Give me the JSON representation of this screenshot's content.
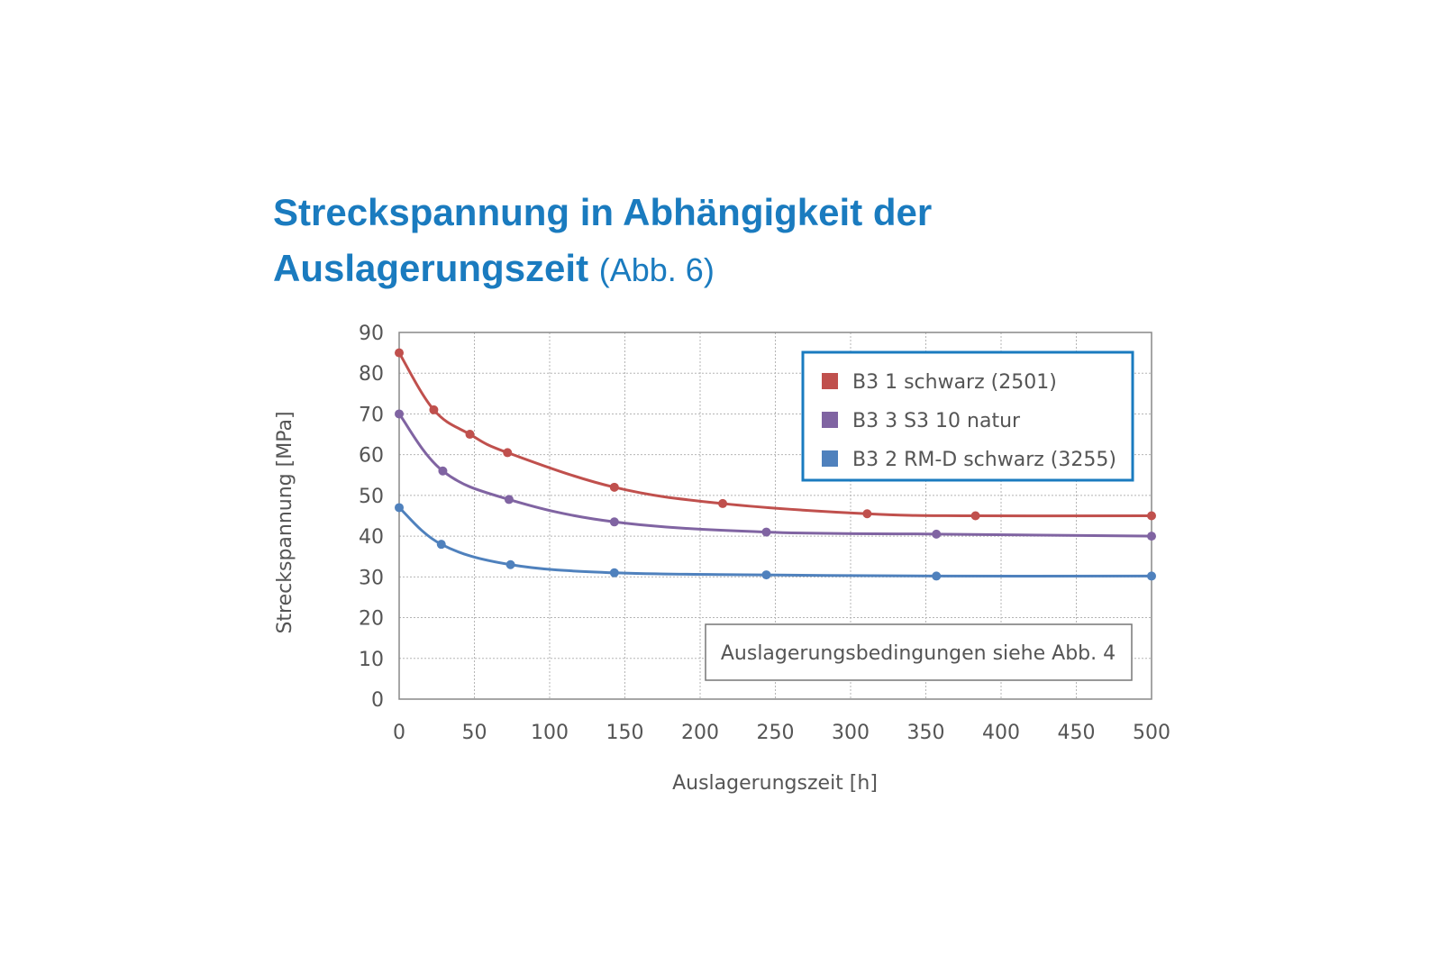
{
  "title": {
    "line1": "Streckspannung in Abhängigkeit der",
    "line2": "Auslagerungszeit",
    "suffix": "(Abb. 6)"
  },
  "chart_data": {
    "type": "line",
    "xlabel": "Auslagerungszeit [h]",
    "ylabel": "Streckspannung [MPa]",
    "xlim": [
      0,
      500
    ],
    "ylim": [
      0,
      90
    ],
    "xticks": [
      0,
      50,
      100,
      150,
      200,
      250,
      300,
      350,
      400,
      450,
      500
    ],
    "yticks": [
      0,
      10,
      20,
      30,
      40,
      50,
      60,
      70,
      80,
      90
    ],
    "grid": true,
    "legend_position": "top-right",
    "annotation": "Auslagerungsbedingungen siehe Abb. 4",
    "series": [
      {
        "name": "B3 1 schwarz (2501)",
        "color": "#c0504d",
        "x": [
          0,
          23,
          47,
          72,
          143,
          215,
          311,
          383,
          500
        ],
        "y": [
          85,
          71,
          65,
          60.5,
          52,
          48,
          45.5,
          45,
          45
        ]
      },
      {
        "name": "B3 3 S3 10 natur",
        "color": "#8064a2",
        "x": [
          0,
          29,
          73,
          143,
          244,
          357,
          500
        ],
        "y": [
          70,
          56,
          49,
          43.5,
          41,
          40.5,
          40
        ]
      },
      {
        "name": "B3 2 RM-D schwarz (3255)",
        "color": "#4f81bd",
        "x": [
          0,
          28,
          74,
          143,
          244,
          357,
          500
        ],
        "y": [
          47,
          38,
          33,
          31,
          30.5,
          30.2,
          30.2
        ]
      }
    ]
  }
}
